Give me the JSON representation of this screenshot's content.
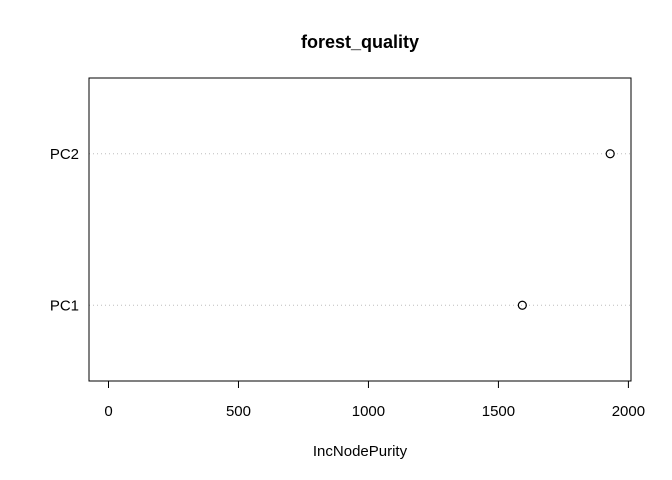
{
  "chart_data": {
    "type": "scatter",
    "title": "forest_quality",
    "xlabel": "IncNodePurity",
    "ylabel": "",
    "categories": [
      "PC1",
      "PC2"
    ],
    "values": [
      1592,
      1930
    ],
    "xlim": [
      -75,
      2010
    ],
    "xticks": [
      0,
      500,
      1000,
      1500,
      2000
    ],
    "xtick_labels": [
      "0",
      "500",
      "1000",
      "1500",
      "2000"
    ],
    "grid": "dotted horizontal guide lines per category",
    "legend": "none",
    "colors": {
      "marker": "#000000",
      "guide": "#bebebe",
      "frame": "#000000"
    }
  }
}
